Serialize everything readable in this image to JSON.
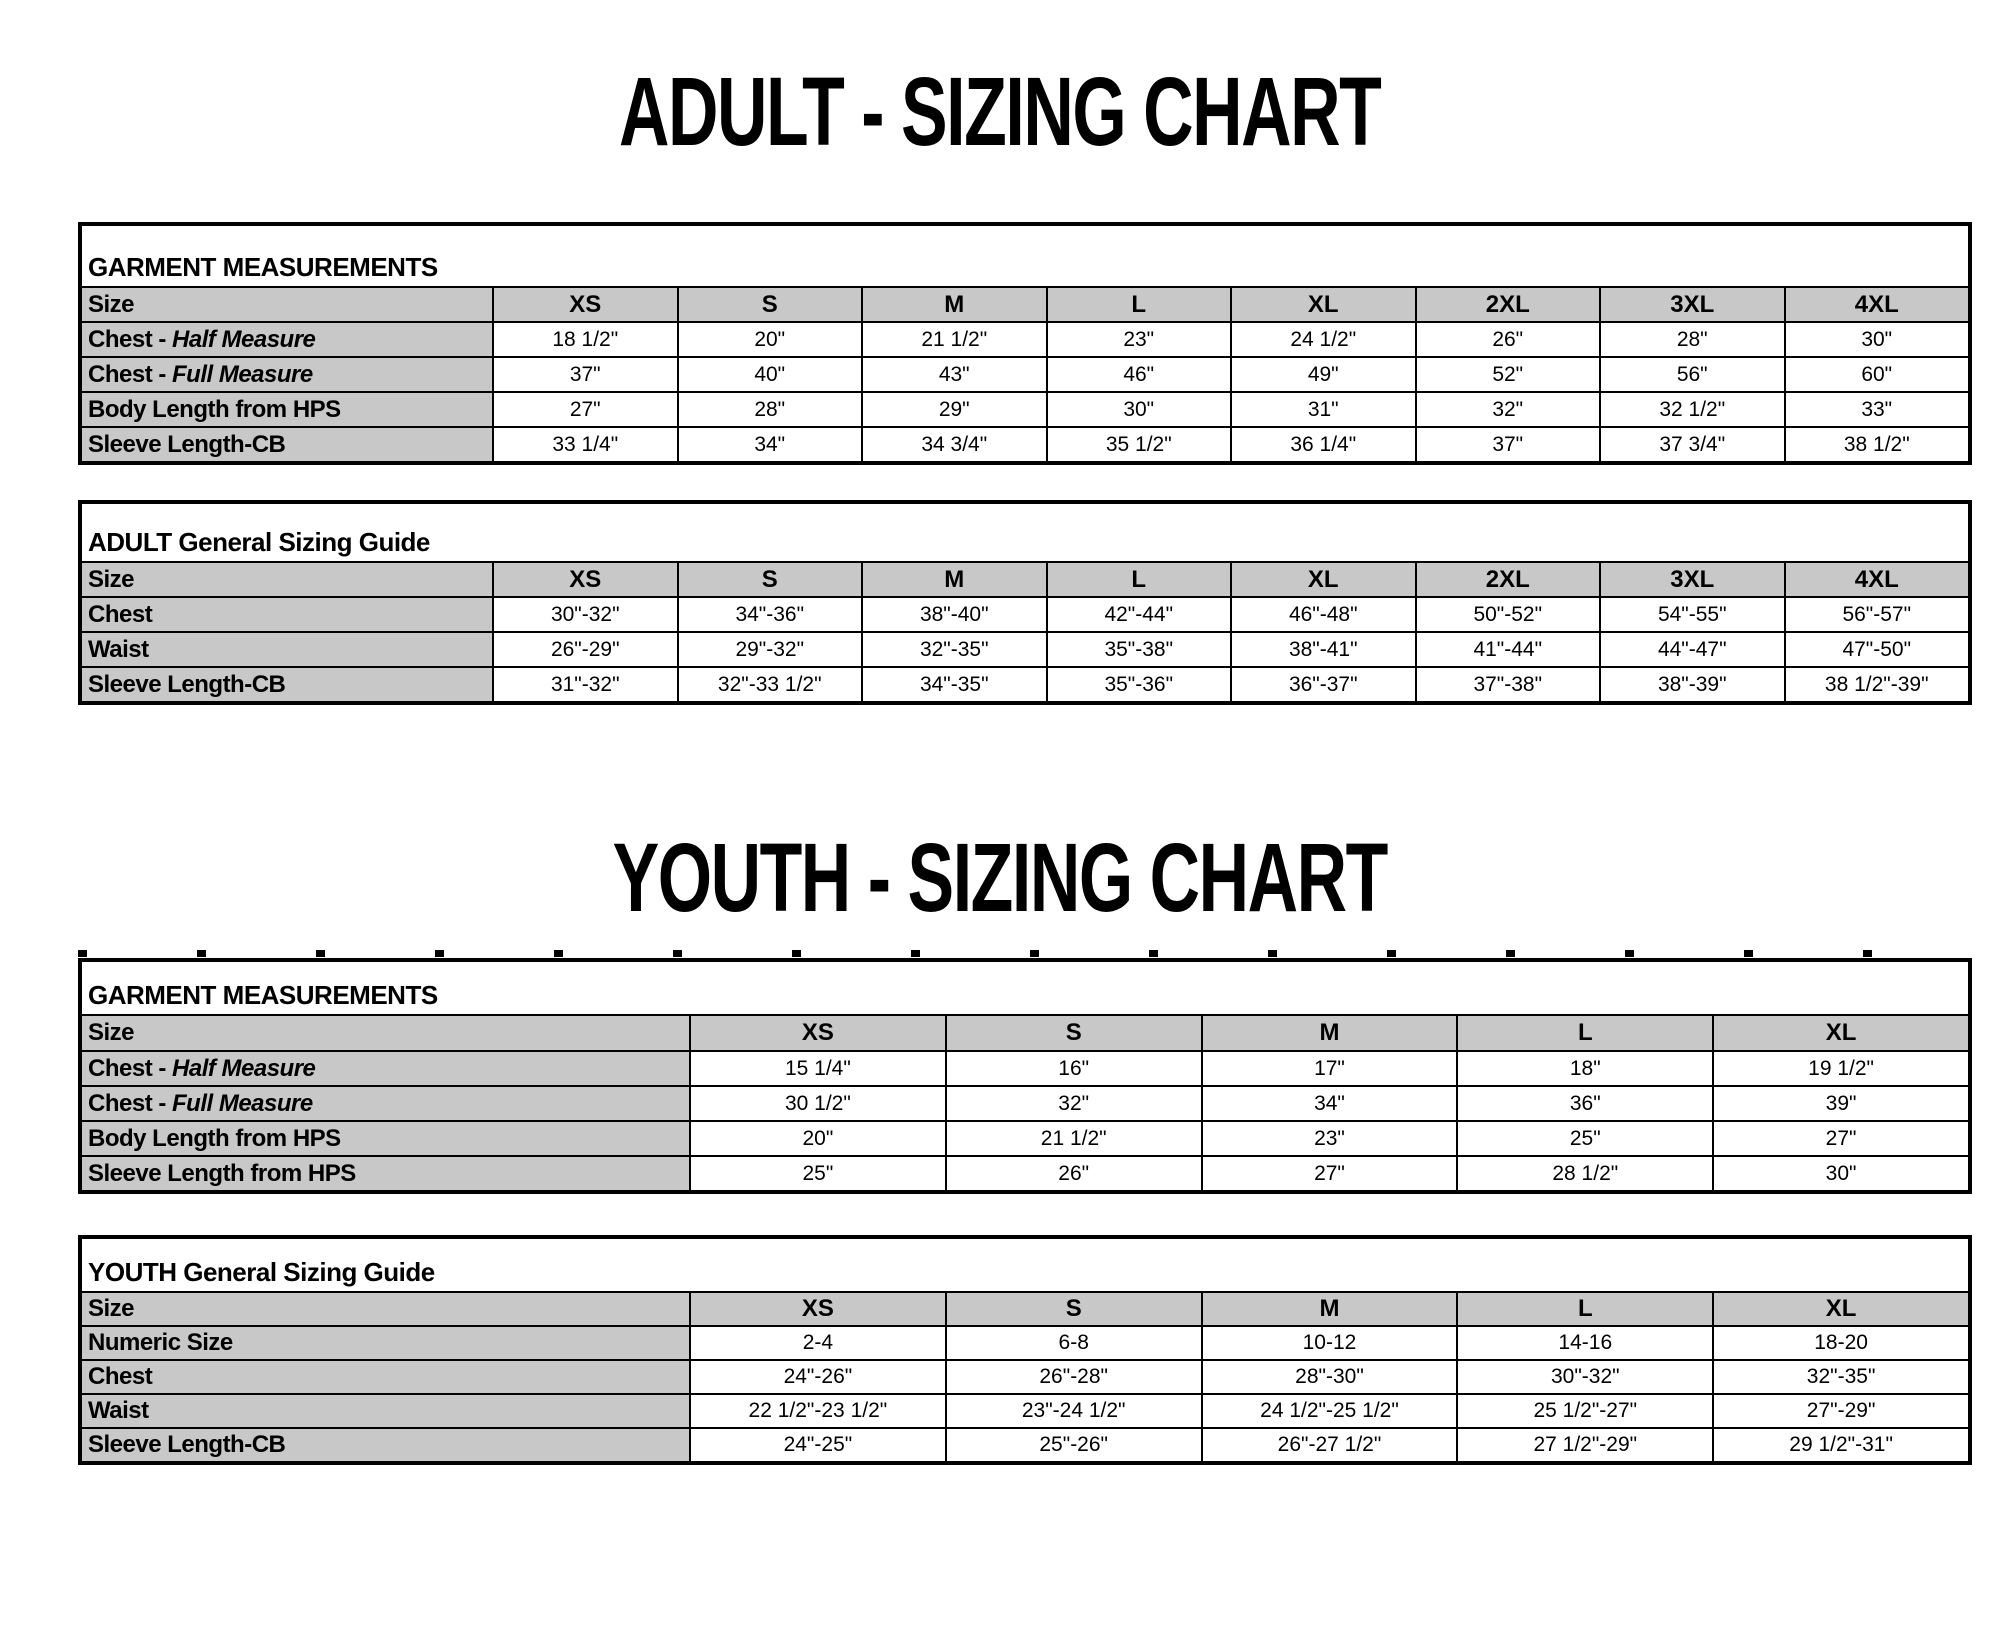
{
  "page": {
    "adult_title": "ADULT - SIZING CHART",
    "youth_title": "YOUTH - SIZING CHART"
  },
  "colors": {
    "header_gray": "#c8c8c8",
    "border_black": "#000000",
    "background": "#ffffff"
  },
  "adult_garment": {
    "title": "GARMENT MEASUREMENTS",
    "header": [
      "Size",
      "XS",
      "S",
      "M",
      "L",
      "XL",
      "2XL",
      "3XL",
      "4XL"
    ],
    "rows": [
      {
        "label": "Chest - ",
        "label_em": "Half Measure",
        "values": [
          "18 1/2\"",
          "20\"",
          "21 1/2\"",
          "23\"",
          "24 1/2\"",
          "26\"",
          "28\"",
          "30\""
        ]
      },
      {
        "label": "Chest - ",
        "label_em": "Full Measure",
        "values": [
          "37\"",
          "40\"",
          "43\"",
          "46\"",
          "49\"",
          "52\"",
          "56\"",
          "60\""
        ]
      },
      {
        "label": "Body Length from HPS",
        "label_em": "",
        "values": [
          "27\"",
          "28\"",
          "29\"",
          "30\"",
          "31\"",
          "32\"",
          "32 1/2\"",
          "33\""
        ]
      },
      {
        "label": "Sleeve Length-CB",
        "label_em": "",
        "values": [
          "33 1/4\"",
          "34\"",
          "34 3/4\"",
          "35 1/2\"",
          "36 1/4\"",
          "37\"",
          "37 3/4\"",
          "38 1/2\""
        ]
      }
    ]
  },
  "adult_general": {
    "title": "ADULT General Sizing Guide",
    "header": [
      "Size",
      "XS",
      "S",
      "M",
      "L",
      "XL",
      "2XL",
      "3XL",
      "4XL"
    ],
    "rows": [
      {
        "label": "Chest",
        "label_em": "",
        "values": [
          "30\"-32\"",
          "34\"-36\"",
          "38\"-40\"",
          "42\"-44\"",
          "46\"-48\"",
          "50\"-52\"",
          "54\"-55\"",
          "56\"-57\""
        ]
      },
      {
        "label": "Waist",
        "label_em": "",
        "values": [
          "26\"-29\"",
          "29\"-32\"",
          "32\"-35\"",
          "35\"-38\"",
          "38\"-41\"",
          "41\"-44\"",
          "44\"-47\"",
          "47\"-50\""
        ]
      },
      {
        "label": "Sleeve Length-CB",
        "label_em": "",
        "values": [
          "31\"-32\"",
          "32\"-33 1/2\"",
          "34\"-35\"",
          "35\"-36\"",
          "36\"-37\"",
          "37\"-38\"",
          "38\"-39\"",
          "38 1/2\"-39\""
        ]
      }
    ]
  },
  "youth_garment": {
    "title": "GARMENT MEASUREMENTS",
    "header": [
      "Size",
      "XS",
      "S",
      "M",
      "L",
      "XL"
    ],
    "rows": [
      {
        "label": "Chest - ",
        "label_em": "Half Measure",
        "values": [
          "15 1/4\"",
          "16\"",
          "17\"",
          "18\"",
          "19 1/2\""
        ]
      },
      {
        "label": "Chest - ",
        "label_em": "Full Measure",
        "values": [
          "30 1/2\"",
          "32\"",
          "34\"",
          "36\"",
          "39\""
        ]
      },
      {
        "label": "Body Length from HPS",
        "label_em": "",
        "values": [
          "20\"",
          "21 1/2\"",
          "23\"",
          "25\"",
          "27\""
        ]
      },
      {
        "label": "Sleeve Length from HPS",
        "label_em": "",
        "values": [
          "25\"",
          "26\"",
          "27\"",
          "28 1/2\"",
          "30\""
        ]
      }
    ]
  },
  "youth_general": {
    "title": "YOUTH General Sizing Guide",
    "header": [
      "Size",
      "XS",
      "S",
      "M",
      "L",
      "XL"
    ],
    "rows": [
      {
        "label": "Numeric Size",
        "label_em": "",
        "values": [
          "2-4",
          "6-8",
          "10-12",
          "14-16",
          "18-20"
        ]
      },
      {
        "label": "Chest",
        "label_em": "",
        "values": [
          "24\"-26\"",
          "26\"-28\"",
          "28\"-30\"",
          "30\"-32\"",
          "32\"-35\""
        ]
      },
      {
        "label": "Waist",
        "label_em": "",
        "values": [
          "22 1/2\"-23 1/2\"",
          "23\"-24 1/2\"",
          "24 1/2\"-25 1/2\"",
          "25 1/2\"-27\"",
          "27\"-29\""
        ]
      },
      {
        "label": "Sleeve Length-CB",
        "label_em": "",
        "values": [
          "24\"-25\"",
          "25\"-26\"",
          "26\"-27 1/2\"",
          "27 1/2\"-29\"",
          "29 1/2\"-31\""
        ]
      }
    ]
  }
}
